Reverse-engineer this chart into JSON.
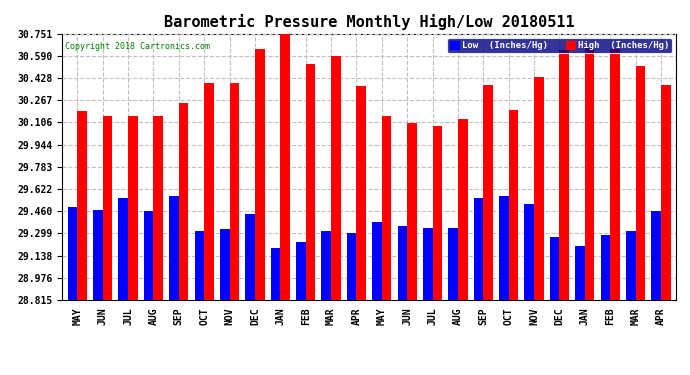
{
  "title": "Barometric Pressure Monthly High/Low 20180511",
  "copyright": "Copyright 2018 Cartronics.com",
  "months": [
    "MAY",
    "JUN",
    "JUL",
    "AUG",
    "SEP",
    "OCT",
    "NOV",
    "DEC",
    "JAN",
    "FEB",
    "MAR",
    "APR",
    "MAY",
    "JUN",
    "JUL",
    "AUG",
    "SEP",
    "OCT",
    "NOV",
    "DEC",
    "JAN",
    "FEB",
    "MAR",
    "APR"
  ],
  "highs": [
    30.19,
    30.15,
    30.15,
    30.15,
    30.25,
    30.39,
    30.39,
    30.64,
    30.75,
    30.53,
    30.59,
    30.37,
    30.15,
    30.1,
    30.08,
    30.13,
    30.38,
    30.2,
    30.44,
    30.63,
    30.65,
    30.64,
    30.52,
    30.38
  ],
  "lows": [
    29.49,
    29.47,
    29.56,
    29.46,
    29.57,
    29.32,
    29.33,
    29.44,
    29.19,
    29.24,
    29.32,
    29.3,
    29.38,
    29.35,
    29.34,
    29.34,
    29.56,
    29.57,
    29.51,
    29.27,
    29.21,
    29.29,
    29.32,
    29.46
  ],
  "ylim_min": 28.815,
  "ylim_max": 30.751,
  "yticks": [
    28.815,
    28.976,
    29.138,
    29.299,
    29.46,
    29.622,
    29.783,
    29.944,
    30.106,
    30.267,
    30.428,
    30.59,
    30.751
  ],
  "bar_width": 0.38,
  "high_color": "#ff0000",
  "low_color": "#0000ff",
  "bg_color": "#ffffff",
  "grid_color": "#c0c0c0",
  "title_fontsize": 11,
  "legend_label_low": "Low  (Inches/Hg)",
  "legend_label_high": "High  (Inches/Hg)",
  "legend_bg": "#000080"
}
